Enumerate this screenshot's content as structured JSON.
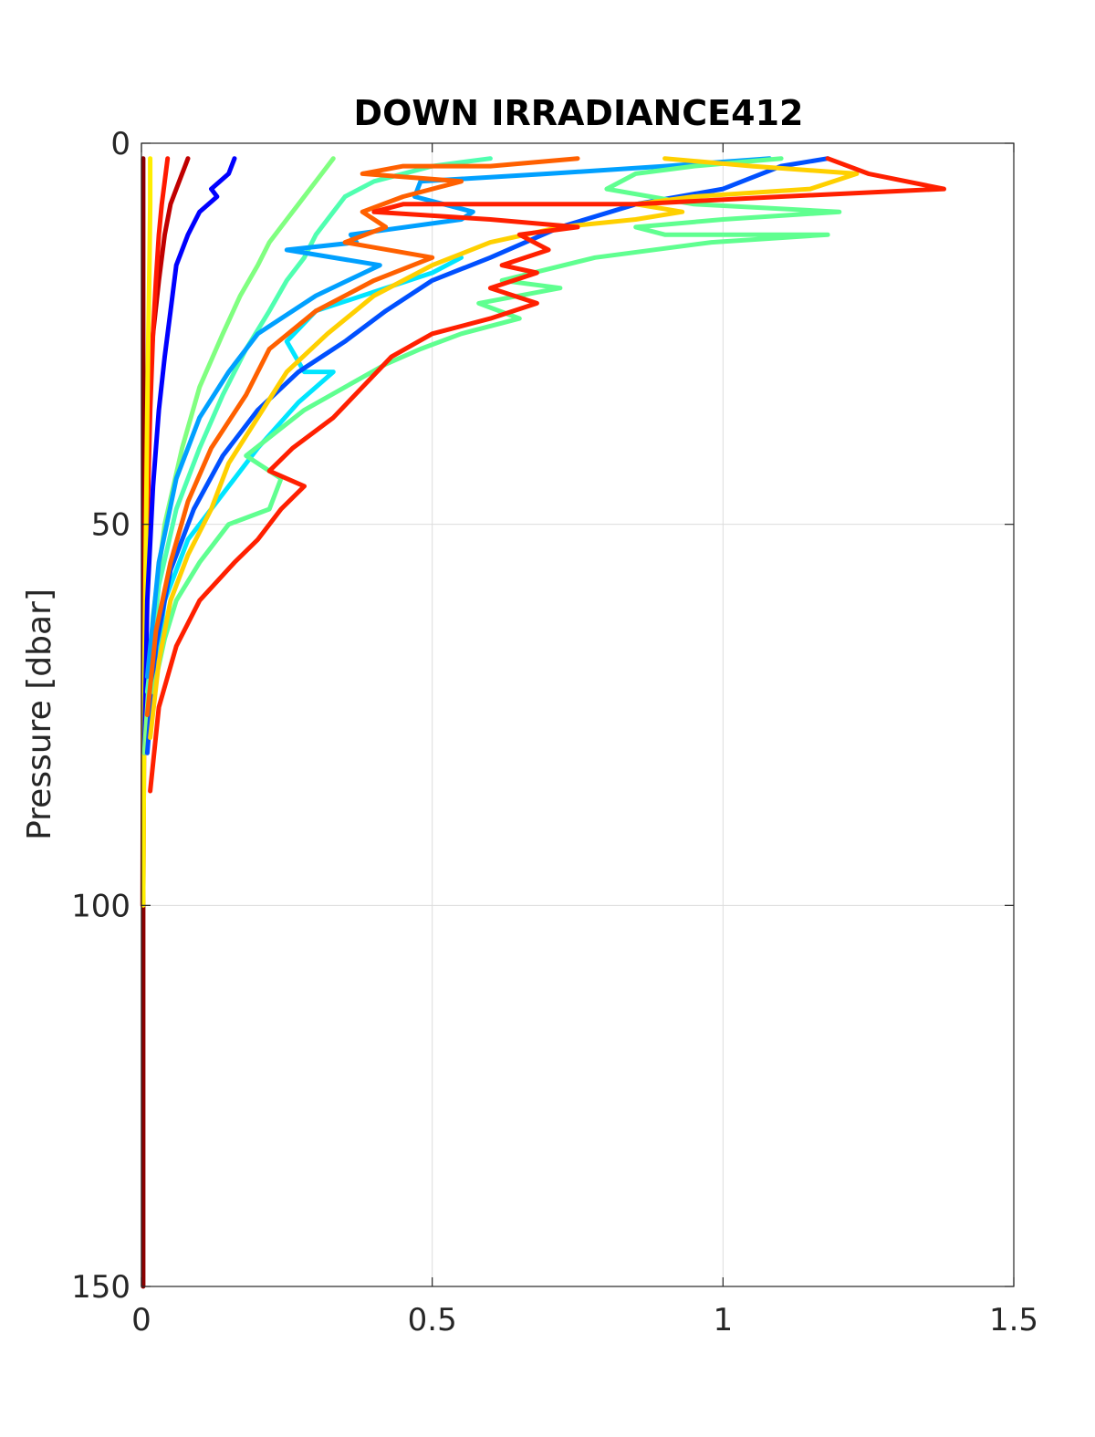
{
  "chart_data": {
    "type": "line",
    "title": "DOWN IRRADIANCE412",
    "xlabel": "",
    "ylabel": "Pressure [dbar]",
    "xlim": [
      0,
      1.5
    ],
    "ylim": [
      0,
      150
    ],
    "y_reversed": true,
    "grid": true,
    "legend": "none",
    "xticks": [
      "0",
      "0.5",
      "1",
      "1.5"
    ],
    "yticks": [
      "0",
      "50",
      "100",
      "150"
    ],
    "series": [
      {
        "color": "#8b0000",
        "x": [
          0.003,
          0.003,
          0.003,
          0.003,
          0.003,
          0.003
        ],
        "y": [
          2,
          30,
          60,
          90,
          120,
          150
        ]
      },
      {
        "color": "#c00000",
        "x": [
          0.08,
          0.075,
          0.07,
          0.06,
          0.05,
          0.04,
          0.03,
          0.02,
          0.01,
          0.005,
          0.003,
          0.002
        ],
        "y": [
          2,
          3,
          4,
          6,
          8,
          12,
          18,
          25,
          35,
          50,
          70,
          100
        ]
      },
      {
        "color": "#ff1a00",
        "x": [
          0.045,
          0.04,
          0.035,
          0.03,
          0.025,
          0.02,
          0.015,
          0.01,
          0.005,
          0.003
        ],
        "y": [
          2,
          5,
          8,
          12,
          18,
          25,
          35,
          50,
          70,
          100
        ]
      },
      {
        "color": "#ffee00",
        "x": [
          0.015,
          0.015,
          0.014,
          0.012,
          0.01,
          0.008,
          0.005,
          0.003
        ],
        "y": [
          2,
          8,
          15,
          25,
          35,
          50,
          70,
          100
        ]
      },
      {
        "color": "#0000ff",
        "x": [
          0.16,
          0.15,
          0.12,
          0.13,
          0.1,
          0.08,
          0.06,
          0.05,
          0.04,
          0.03,
          0.02,
          0.01,
          0.005
        ],
        "y": [
          2,
          4,
          6,
          7,
          9,
          12,
          16,
          22,
          28,
          35,
          45,
          60,
          80
        ]
      },
      {
        "color": "#80ff80",
        "x": [
          0.33,
          0.31,
          0.29,
          0.27,
          0.25,
          0.22,
          0.2,
          0.17,
          0.14,
          0.1,
          0.07,
          0.04,
          0.02,
          0.005
        ],
        "y": [
          2,
          4,
          6,
          8,
          10,
          13,
          16,
          20,
          25,
          32,
          40,
          50,
          62,
          80
        ]
      },
      {
        "color": "#50ffb0",
        "x": [
          0.6,
          0.5,
          0.4,
          0.35,
          0.33,
          0.3,
          0.28,
          0.25,
          0.22,
          0.18,
          0.14,
          0.1,
          0.06,
          0.03,
          0.01
        ],
        "y": [
          2,
          3,
          5,
          7,
          9,
          12,
          15,
          18,
          22,
          27,
          33,
          40,
          48,
          58,
          72
        ]
      },
      {
        "color": "#00e5ff",
        "x": [
          0.55,
          0.5,
          0.42,
          0.3,
          0.25,
          0.28,
          0.33,
          0.27,
          0.2,
          0.14,
          0.08,
          0.04,
          0.02
        ],
        "y": [
          15,
          17,
          19,
          22,
          26,
          30,
          30,
          34,
          40,
          46,
          52,
          60,
          72
        ]
      },
      {
        "color": "#00a0ff",
        "x": [
          1.08,
          0.9,
          0.7,
          0.48,
          0.47,
          0.57,
          0.55,
          0.36,
          0.37,
          0.25,
          0.41,
          0.3,
          0.2,
          0.15,
          0.1,
          0.06,
          0.03,
          0.01
        ],
        "y": [
          2,
          3,
          4,
          5,
          7,
          9,
          10,
          12,
          13,
          14,
          16,
          20,
          25,
          30,
          36,
          44,
          55,
          70
        ]
      },
      {
        "color": "#0050ff",
        "x": [
          1.18,
          1.1,
          1.0,
          0.85,
          0.72,
          0.6,
          0.5,
          0.42,
          0.35,
          0.27,
          0.2,
          0.14,
          0.09,
          0.05,
          0.025,
          0.01
        ],
        "y": [
          2,
          3,
          6,
          8,
          11,
          15,
          18,
          22,
          26,
          30,
          35,
          41,
          48,
          56,
          66,
          80
        ]
      },
      {
        "color": "#60ff90",
        "x": [
          1.1,
          0.95,
          0.85,
          0.8,
          0.95,
          1.2,
          1.0,
          0.85,
          0.9,
          1.18,
          0.98,
          0.78,
          0.62,
          0.72,
          0.58,
          0.65,
          0.55,
          0.48,
          0.42,
          0.35,
          0.28,
          0.23,
          0.18,
          0.24,
          0.22,
          0.15,
          0.1,
          0.06,
          0.04,
          0.02
        ],
        "y": [
          2,
          3,
          4,
          6,
          8,
          9,
          10,
          11,
          12,
          12,
          13,
          15,
          18,
          19,
          21,
          23,
          25,
          27,
          29,
          32,
          35,
          38,
          41,
          44,
          48,
          50,
          55,
          60,
          65,
          72
        ]
      },
      {
        "color": "#ffd000",
        "x": [
          0.9,
          1.05,
          1.23,
          1.15,
          0.95,
          0.85,
          0.93,
          0.85,
          0.72,
          0.6,
          0.5,
          0.4,
          0.32,
          0.25,
          0.2,
          0.15,
          0.12,
          0.08,
          0.05,
          0.03,
          0.015
        ],
        "y": [
          2,
          3,
          4,
          6,
          7,
          8,
          9,
          10,
          11,
          13,
          16,
          20,
          25,
          30,
          36,
          42,
          48,
          54,
          60,
          68,
          78
        ]
      },
      {
        "color": "#ff6000",
        "x": [
          0.75,
          0.6,
          0.45,
          0.38,
          0.55,
          0.45,
          0.38,
          0.42,
          0.35,
          0.5,
          0.4,
          0.3,
          0.22,
          0.18,
          0.12,
          0.08,
          0.05,
          0.025,
          0.01
        ],
        "y": [
          2,
          3,
          3,
          4,
          5,
          7,
          9,
          11,
          13,
          15,
          18,
          22,
          27,
          33,
          40,
          47,
          55,
          64,
          75
        ]
      },
      {
        "color": "#ff2000",
        "x": [
          1.18,
          1.25,
          1.38,
          1.1,
          0.85,
          0.6,
          0.45,
          0.4,
          0.6,
          0.75,
          0.65,
          0.7,
          0.62,
          0.68,
          0.6,
          0.68,
          0.6,
          0.5,
          0.43,
          0.38,
          0.33,
          0.26,
          0.22,
          0.28,
          0.24,
          0.2,
          0.16,
          0.1,
          0.06,
          0.03,
          0.015
        ],
        "y": [
          2,
          4,
          6,
          7,
          8,
          8,
          8,
          9,
          10,
          11,
          12,
          14,
          16,
          17,
          19,
          21,
          23,
          25,
          28,
          32,
          36,
          40,
          43,
          45,
          48,
          52,
          55,
          60,
          66,
          74,
          85
        ]
      }
    ]
  }
}
